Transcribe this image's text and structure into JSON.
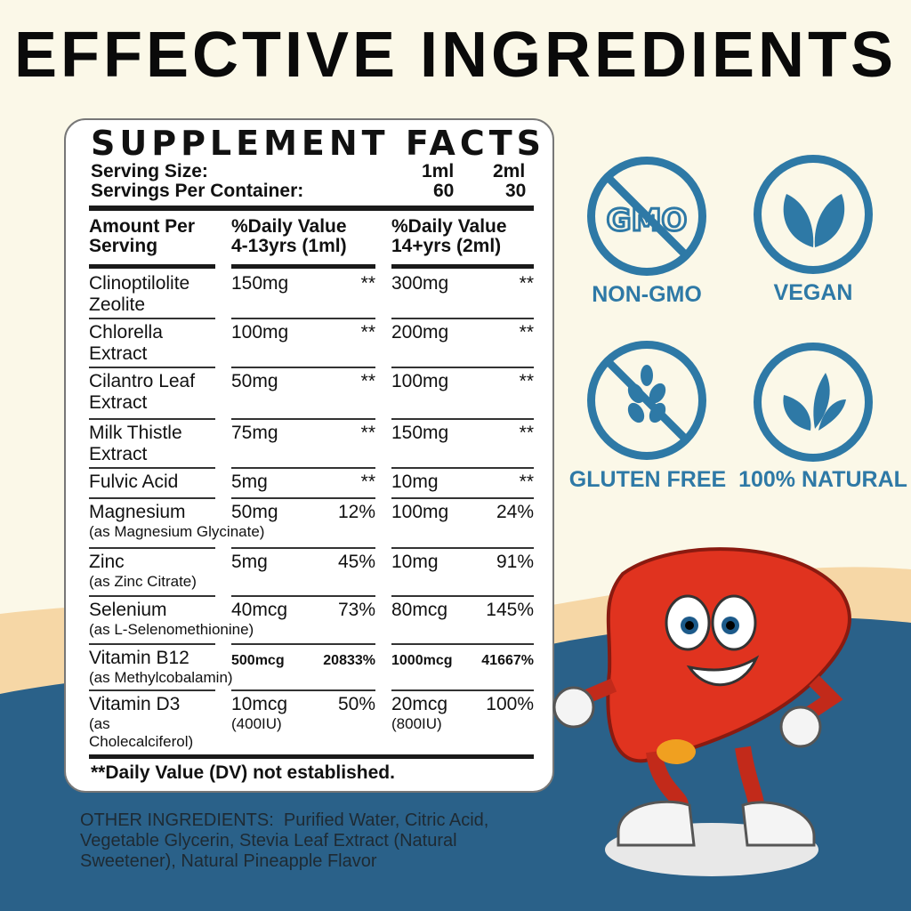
{
  "title": "EFFECTIVE INGREDIENTS",
  "facts": {
    "heading": "SUPPLEMENT FACTS",
    "serving_size_label": "Serving Size:",
    "serving_size_1": "1ml",
    "serving_size_2": "2ml",
    "servings_label": "Servings Per Container:",
    "servings_1": "60",
    "servings_2": "30",
    "col_amount": [
      "Amount Per",
      "Serving"
    ],
    "col_dv1": [
      "%Daily Value",
      "4-13yrs (1ml)"
    ],
    "col_dv2": [
      "%Daily Value",
      "14+yrs (2ml)"
    ],
    "rows": [
      {
        "name": [
          "Clinoptilolite",
          "Zeolite"
        ],
        "a1": "150mg",
        "d1": "**",
        "a2": "300mg",
        "d2": "**"
      },
      {
        "name": [
          "Chlorella",
          "Extract"
        ],
        "a1": "100mg",
        "d1": "**",
        "a2": "200mg",
        "d2": "**"
      },
      {
        "name": [
          "Cilantro Leaf",
          "Extract"
        ],
        "a1": "50mg",
        "d1": "**",
        "a2": "100mg",
        "d2": "**"
      },
      {
        "name": [
          "Milk Thistle",
          "Extract"
        ],
        "a1": "75mg",
        "d1": "**",
        "a2": "150mg",
        "d2": "**"
      },
      {
        "name": [
          "Fulvic Acid"
        ],
        "a1": "5mg",
        "d1": "**",
        "a2": "10mg",
        "d2": "**"
      },
      {
        "name": [
          "Magnesium"
        ],
        "sub": "(as Magnesium Glycinate)",
        "a1": "50mg",
        "d1": "12%",
        "a2": "100mg",
        "d2": "24%"
      },
      {
        "name": [
          "Zinc"
        ],
        "sub": "(as Zinc Citrate)",
        "a1": "5mg",
        "d1": "45%",
        "a2": "10mg",
        "d2": "91%"
      },
      {
        "name": [
          "Selenium"
        ],
        "sub": "(as L-Selenomethionine)",
        "a1": "40mcg",
        "d1": "73%",
        "a2": "80mcg",
        "d2": "145%"
      },
      {
        "name": [
          "Vitamin B12"
        ],
        "sub": "(as Methylcobalamin)",
        "a1": "500mcg",
        "d1": "20833%",
        "a2": "1000mcg",
        "d2": "41667%"
      },
      {
        "name": [
          "Vitamin D3"
        ],
        "sub": "(as\nCholecalciferol)",
        "a1": "10mcg",
        "a1b": "(400IU)",
        "d1": "50%",
        "a2": "20mcg",
        "a2b": "(800IU)",
        "d2": "100%"
      }
    ],
    "footnote": "**Daily Value (DV) not established."
  },
  "other_ingredients": {
    "label": "OTHER INGREDIENTS:",
    "text": "Purified Water, Citric Acid, Vegetable Glycerin, Stevia Leaf Extract (Natural Sweetener), Natural Pineapple Flavor"
  },
  "badges": [
    {
      "label": "NON-GMO",
      "icon": "no-gmo-icon",
      "text": "GMO"
    },
    {
      "label": "VEGAN",
      "icon": "leaves-icon"
    },
    {
      "label": "GLUTEN FREE",
      "icon": "no-wheat-icon"
    },
    {
      "label": "100% NATURAL",
      "icon": "natural-leaves-icon"
    }
  ],
  "colors": {
    "background": "#fbf8e8",
    "wave_blue": "#2a6189",
    "wave_peach": "#f6d7a6",
    "badge_blue": "#2e79a6",
    "mascot_red": "#e0331f"
  }
}
